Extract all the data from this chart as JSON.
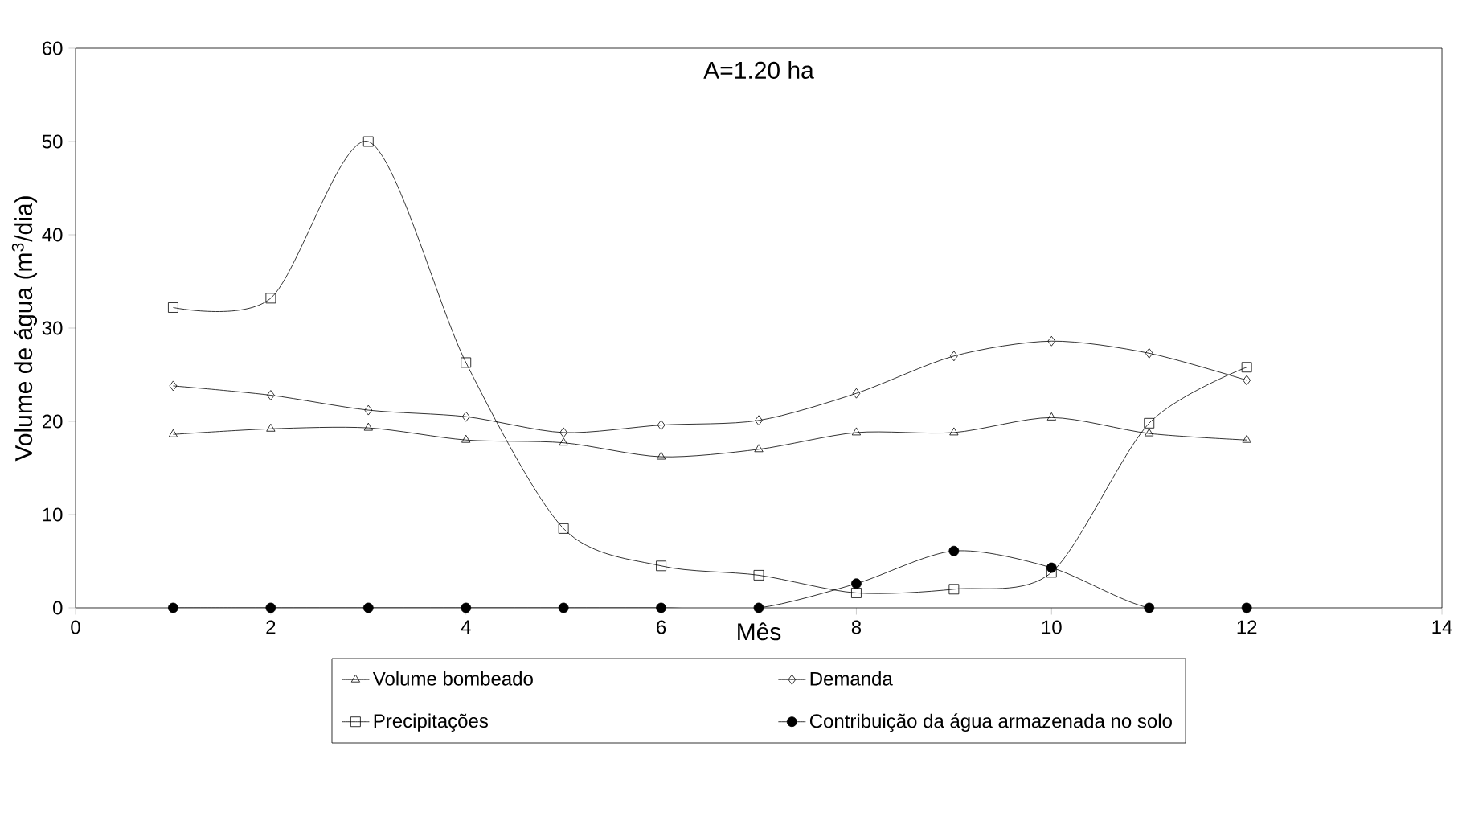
{
  "chart_data": {
    "type": "line",
    "title": "A=1.20 ha",
    "xlabel": "Mês",
    "ylabel": "Volume de água (m$^{3}$/dia)",
    "xlim": [
      0,
      14
    ],
    "xticks": [
      0,
      2,
      4,
      6,
      8,
      10,
      12,
      14
    ],
    "ylim": [
      0,
      60
    ],
    "yticks": [
      0,
      10,
      20,
      30,
      40,
      50,
      60
    ],
    "legend": "bottom",
    "grid": false,
    "x": [
      1,
      2,
      3,
      4,
      5,
      6,
      7,
      8,
      9,
      10,
      11,
      12
    ],
    "series": [
      {
        "name": "Volume bombeado",
        "color": "#000000",
        "marker": "triangle",
        "values": [
          18.6,
          19.2,
          19.3,
          18.0,
          17.7,
          16.2,
          17.0,
          18.8,
          18.8,
          20.4,
          18.7,
          18.0
        ]
      },
      {
        "name": "Demanda",
        "color": "#000000",
        "marker": "diamond",
        "values": [
          23.8,
          22.8,
          21.2,
          20.5,
          18.8,
          19.6,
          20.1,
          23.0,
          27.0,
          28.6,
          27.3,
          24.4
        ]
      },
      {
        "name": "Precipitações",
        "color": "#000000",
        "marker": "square",
        "values": [
          32.2,
          33.2,
          50.0,
          26.3,
          8.5,
          4.5,
          3.5,
          1.6,
          2.0,
          3.8,
          19.8,
          25.8
        ]
      },
      {
        "name": "Contribuição da água armazenada no solo",
        "color": "#000000",
        "marker": "circle",
        "values": [
          0,
          0,
          0,
          0,
          0,
          0,
          0,
          2.6,
          6.1,
          4.3,
          0,
          0
        ]
      }
    ]
  }
}
